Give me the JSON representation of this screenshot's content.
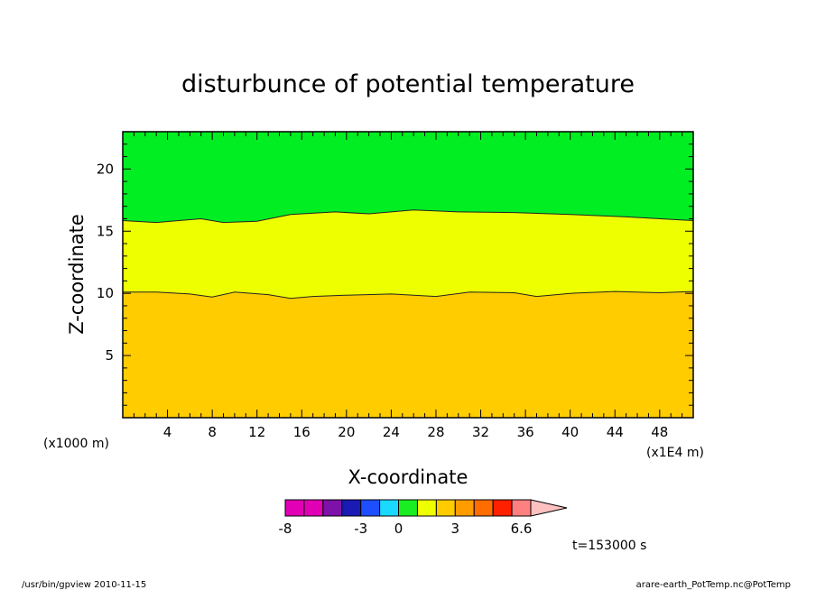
{
  "chart_data": {
    "type": "heatmap",
    "title": "disturbunce of potential temperature",
    "xlabel": "X-coordinate",
    "ylabel": "Z-coordinate",
    "x_unit_left": "(x1000 m)",
    "x_unit_right": "(x1E4 m)",
    "xlim": [
      0,
      51
    ],
    "ylim": [
      0,
      23
    ],
    "x_ticks": [
      4,
      8,
      12,
      16,
      20,
      24,
      28,
      32,
      36,
      40,
      44,
      48
    ],
    "y_ticks": [
      5,
      10,
      15,
      20
    ],
    "regions": [
      {
        "range": "0 to 1",
        "color": "#ffcc00"
      },
      {
        "range": "1 to 2",
        "color": "#eeff00"
      },
      {
        "range": "-1 to 0",
        "color": "#00ee22"
      }
    ],
    "contours": [
      {
        "name": "lower",
        "x": [
          0,
          3,
          6,
          8,
          10,
          13,
          15,
          17,
          20,
          24,
          28,
          31,
          35,
          37,
          40,
          44,
          48,
          51
        ],
        "z": [
          10.1,
          10.1,
          9.95,
          9.7,
          10.1,
          9.9,
          9.6,
          9.75,
          9.85,
          9.95,
          9.75,
          10.1,
          10.05,
          9.75,
          10.0,
          10.15,
          10.05,
          10.15
        ]
      },
      {
        "name": "upper",
        "x": [
          0,
          3,
          5,
          7,
          9,
          12,
          15,
          19,
          22,
          26,
          30,
          35,
          40,
          45,
          51
        ],
        "z": [
          15.85,
          15.7,
          15.85,
          16.0,
          15.7,
          15.8,
          16.35,
          16.55,
          16.4,
          16.7,
          16.55,
          16.5,
          16.35,
          16.15,
          15.85
        ]
      }
    ]
  },
  "colorbar": {
    "colors": [
      "#e100b4",
      "#e100b4",
      "#7d11a8",
      "#1a1ab4",
      "#1e4fff",
      "#1ad8ff",
      "#1aee22",
      "#eeff00",
      "#ffcc00",
      "#ff9c00",
      "#ff6c00",
      "#ff2000",
      "#ff8080"
    ],
    "arrow_color": "#ffc0c0",
    "labels": [
      "-8",
      "-3",
      "0",
      "3",
      "6.6"
    ]
  },
  "time_label": "t=153000 s",
  "footer_left": "/usr/bin/gpview   2010-11-15",
  "footer_right": "arare-earth_PotTemp.nc@PotTemp"
}
